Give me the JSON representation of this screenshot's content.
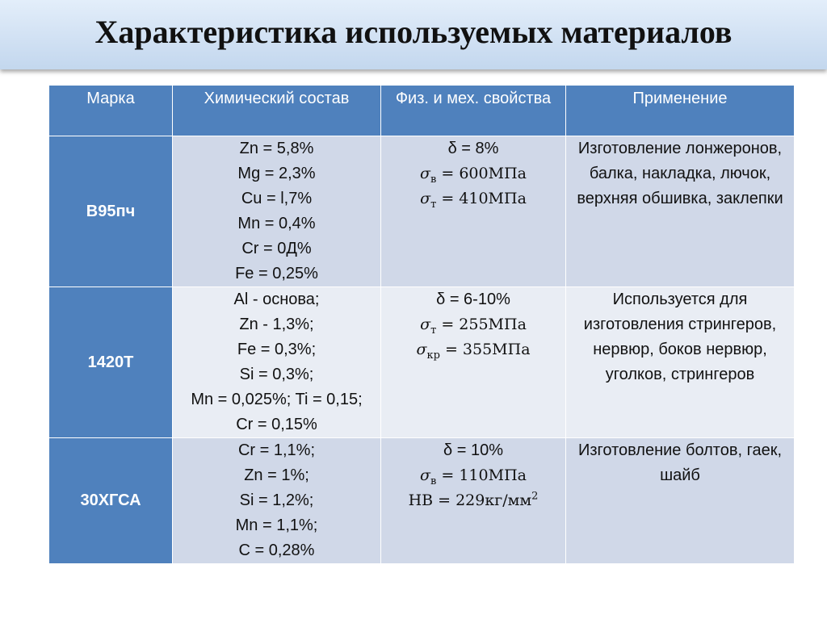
{
  "header": {
    "title": "Характеристика используемых материалов"
  },
  "table": {
    "columns": [
      "Марка",
      "Химический состав",
      "Физ. и мех. свойства",
      "Применение"
    ],
    "rows": [
      {
        "grade": "В95пч",
        "composition": [
          "Zn = 5,8%",
          "Mg = 2,3%",
          "Cu = l,7%",
          "Mn = 0,4%",
          "Cr = 0Д%",
          "Fe = 0,25%"
        ],
        "properties": [
          "δ = 8%",
          [
            {
              "text": "σ",
              "style": "italic"
            },
            {
              "text": "в",
              "style": "sub"
            },
            {
              "text": " = 600МПа"
            }
          ],
          [
            {
              "text": "σ",
              "style": "italic"
            },
            {
              "text": "т",
              "style": "sub"
            },
            {
              "text": " = 410МПа"
            }
          ]
        ],
        "application": "Изготовление лонжеронов, балка, накладка, лючок, верхняя обшивка, заклепки"
      },
      {
        "grade": "1420Т",
        "composition": [
          "Al - основа;",
          "Zn - 1,3%;",
          "Fe = 0,3%;",
          "Si = 0,3%;",
          "Mn = 0,025%; Ti = 0,15;",
          "Cr = 0,15%"
        ],
        "properties": [
          "δ = 6-10%",
          [
            {
              "text": "σ",
              "style": "italic"
            },
            {
              "text": "т",
              "style": "sub"
            },
            {
              "text": " = 255МПа"
            }
          ],
          [
            {
              "text": "σ",
              "style": "italic"
            },
            {
              "text": "кр",
              "style": "sub"
            },
            {
              "text": " = 355МПа"
            }
          ]
        ],
        "application": "Используется для изготовления стрингеров, нервюр, боков нервюр, уголков, стрингеров"
      },
      {
        "grade": "30ХГСА",
        "composition": [
          "Cr = 1,1%;",
          "Zn = 1%;",
          "Si = 1,2%;",
          "Mn = 1,1%;",
          "C = 0,28%"
        ],
        "properties": [
          "δ = 10%",
          [
            {
              "text": "σ",
              "style": "italic"
            },
            {
              "text": "в",
              "style": "sub"
            },
            {
              "text": " = 110МПа"
            }
          ],
          [
            {
              "text": "HB = 229кг/мм"
            },
            {
              "text": "2",
              "style": "sup"
            }
          ]
        ],
        "application": "Изготовление болтов, гаек, шайб"
      }
    ]
  }
}
